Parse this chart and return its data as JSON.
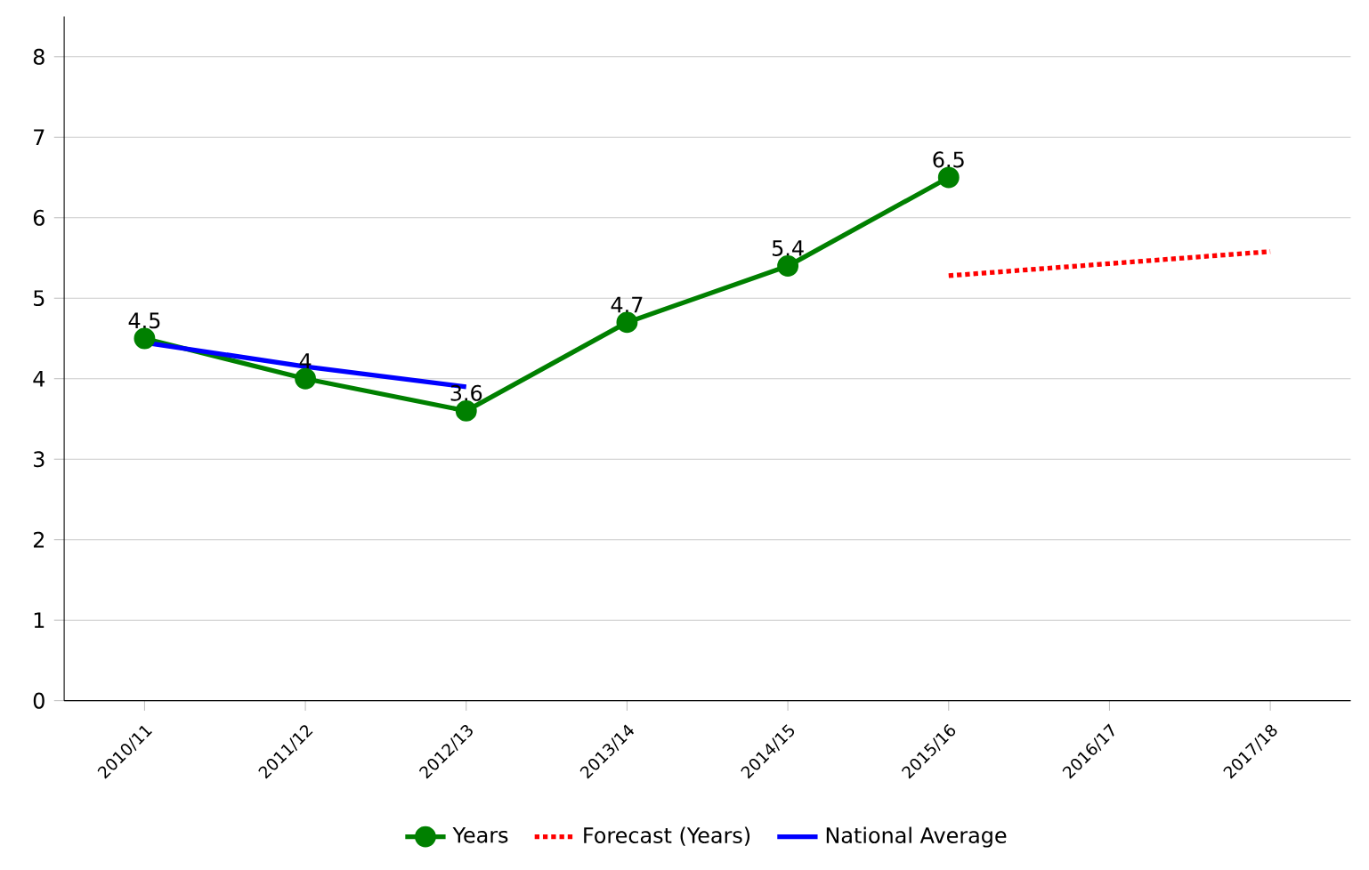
{
  "chart_data": {
    "type": "line",
    "categories": [
      "2010/11",
      "2011/12",
      "2012/13",
      "2013/14",
      "2014/15",
      "2015/16",
      "2016/17",
      "2017/18"
    ],
    "series": [
      {
        "name": "Years",
        "color": "#008000",
        "marker": "circle",
        "line_style": "solid",
        "values": [
          4.5,
          4,
          3.6,
          4.7,
          5.4,
          6.5,
          null,
          null
        ],
        "value_labels": [
          "4.5",
          "4",
          "3.6",
          "4.7",
          "5.4",
          "6.5",
          null,
          null
        ]
      },
      {
        "name": "Forecast (Years)",
        "color": "#ff0000",
        "marker": "none",
        "line_style": "dotted",
        "values": [
          null,
          null,
          null,
          null,
          null,
          5.28,
          5.43,
          5.58
        ]
      },
      {
        "name": "National Average",
        "color": "#0000ff",
        "marker": "none",
        "line_style": "solid",
        "values": [
          4.45,
          4.15,
          3.9,
          null,
          null,
          null,
          null,
          null
        ]
      }
    ],
    "ylim": [
      0,
      8.5
    ],
    "yticks": [
      0,
      1,
      2,
      3,
      4,
      5,
      6,
      7,
      8
    ],
    "grid": "y",
    "legend": "bottom"
  }
}
